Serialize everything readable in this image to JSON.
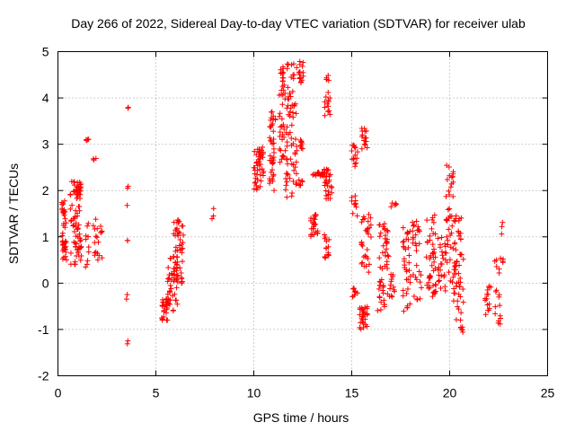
{
  "chart_data": {
    "type": "scatter",
    "title": "Day 266 of 2022, Sidereal Day-to-day VTEC variation (SDTVAR) for receiver ulab",
    "xlabel": "GPS time / hours",
    "ylabel": "SDTVAR / TECUs",
    "xlim": [
      0,
      25
    ],
    "ylim": [
      -2,
      5
    ],
    "xticks": [
      "0",
      "5",
      "10",
      "15",
      "20",
      "25"
    ],
    "yticks": [
      "-2",
      "-1",
      "0",
      "1",
      "2",
      "3",
      "4",
      "5"
    ],
    "grid": true,
    "marker": "+",
    "color": "#ff0000",
    "clusters": [
      {
        "x0": 0.2,
        "x1": 0.5,
        "y0": 0.5,
        "y1": 1.8,
        "n": 40
      },
      {
        "x0": 0.6,
        "x1": 1.2,
        "y0": 0.4,
        "y1": 2.2,
        "n": 60
      },
      {
        "x0": 0.8,
        "x1": 1.2,
        "y0": 1.9,
        "y1": 2.2,
        "n": 25
      },
      {
        "x0": 1.4,
        "x1": 1.6,
        "y0": 3.05,
        "y1": 3.12,
        "n": 4
      },
      {
        "x0": 1.4,
        "x1": 1.6,
        "y0": 0.3,
        "y1": 1.3,
        "n": 10
      },
      {
        "x0": 1.8,
        "x1": 2.1,
        "y0": 0.5,
        "y1": 1.4,
        "n": 14
      },
      {
        "x0": 1.8,
        "x1": 1.95,
        "y0": 2.5,
        "y1": 2.7,
        "n": 3
      },
      {
        "x0": 2.15,
        "x1": 2.25,
        "y0": 0.4,
        "y1": 1.75,
        "n": 5
      },
      {
        "x0": 3.5,
        "x1": 3.6,
        "y0": 3.75,
        "y1": 3.8,
        "n": 2
      },
      {
        "x0": 3.5,
        "x1": 3.6,
        "y0": 2.0,
        "y1": 2.25,
        "n": 2
      },
      {
        "x0": 3.5,
        "x1": 3.6,
        "y0": 1.65,
        "y1": 1.7,
        "n": 1
      },
      {
        "x0": 3.5,
        "x1": 3.6,
        "y0": 0.85,
        "y1": 0.95,
        "n": 2
      },
      {
        "x0": 3.5,
        "x1": 3.6,
        "y0": -0.35,
        "y1": -0.2,
        "n": 2
      },
      {
        "x0": 3.5,
        "x1": 3.6,
        "y0": -1.4,
        "y1": -1.15,
        "n": 2
      },
      {
        "x0": 5.3,
        "x1": 5.6,
        "y0": -0.8,
        "y1": -0.3,
        "n": 25
      },
      {
        "x0": 5.6,
        "x1": 6.1,
        "y0": -0.6,
        "y1": 0.6,
        "n": 40
      },
      {
        "x0": 5.9,
        "x1": 6.4,
        "y0": 0.0,
        "y1": 1.4,
        "n": 50
      },
      {
        "x0": 7.85,
        "x1": 7.95,
        "y0": 1.35,
        "y1": 1.8,
        "n": 3
      },
      {
        "x0": 10.0,
        "x1": 10.5,
        "y0": 2.0,
        "y1": 2.95,
        "n": 45
      },
      {
        "x0": 10.8,
        "x1": 11.1,
        "y0": 2.0,
        "y1": 3.7,
        "n": 40
      },
      {
        "x0": 11.3,
        "x1": 11.6,
        "y0": 2.6,
        "y1": 4.7,
        "n": 40
      },
      {
        "x0": 11.6,
        "x1": 12.2,
        "y0": 1.8,
        "y1": 4.8,
        "n": 70
      },
      {
        "x0": 12.3,
        "x1": 12.5,
        "y0": 2.9,
        "y1": 3.1,
        "n": 10
      },
      {
        "x0": 12.3,
        "x1": 12.5,
        "y0": 2.1,
        "y1": 2.3,
        "n": 6
      },
      {
        "x0": 12.3,
        "x1": 12.6,
        "y0": 4.3,
        "y1": 4.8,
        "n": 15
      },
      {
        "x0": 12.9,
        "x1": 13.3,
        "y0": 1.0,
        "y1": 1.5,
        "n": 25
      },
      {
        "x0": 13.0,
        "x1": 13.6,
        "y0": 2.3,
        "y1": 2.4,
        "n": 20
      },
      {
        "x0": 13.6,
        "x1": 14.0,
        "y0": 1.8,
        "y1": 2.5,
        "n": 30
      },
      {
        "x0": 13.6,
        "x1": 13.9,
        "y0": 3.6,
        "y1": 4.5,
        "n": 18
      },
      {
        "x0": 13.6,
        "x1": 13.9,
        "y0": 0.5,
        "y1": 1.05,
        "n": 14
      },
      {
        "x0": 15.0,
        "x1": 15.3,
        "y0": 2.5,
        "y1": 3.0,
        "n": 15
      },
      {
        "x0": 15.0,
        "x1": 15.3,
        "y0": 1.4,
        "y1": 1.9,
        "n": 10
      },
      {
        "x0": 15.0,
        "x1": 15.3,
        "y0": -0.3,
        "y1": -0.1,
        "n": 10
      },
      {
        "x0": 15.4,
        "x1": 15.8,
        "y0": -1.0,
        "y1": -0.5,
        "n": 30
      },
      {
        "x0": 15.5,
        "x1": 15.8,
        "y0": 2.9,
        "y1": 3.4,
        "n": 15
      },
      {
        "x0": 15.5,
        "x1": 16.0,
        "y0": 0.2,
        "y1": 1.5,
        "n": 30
      },
      {
        "x0": 16.3,
        "x1": 16.7,
        "y0": -0.6,
        "y1": 0.1,
        "n": 20
      },
      {
        "x0": 16.4,
        "x1": 16.9,
        "y0": 0.3,
        "y1": 1.3,
        "n": 30
      },
      {
        "x0": 16.8,
        "x1": 17.2,
        "y0": -0.3,
        "y1": 0.2,
        "n": 14
      },
      {
        "x0": 16.9,
        "x1": 17.3,
        "y0": 1.6,
        "y1": 1.8,
        "n": 5
      },
      {
        "x0": 17.6,
        "x1": 18.0,
        "y0": -0.7,
        "y1": 1.2,
        "n": 35
      },
      {
        "x0": 18.1,
        "x1": 18.6,
        "y0": -0.4,
        "y1": 1.4,
        "n": 30
      },
      {
        "x0": 18.8,
        "x1": 19.3,
        "y0": -0.3,
        "y1": 1.6,
        "n": 45
      },
      {
        "x0": 19.4,
        "x1": 19.8,
        "y0": -0.2,
        "y1": 1.0,
        "n": 25
      },
      {
        "x0": 19.8,
        "x1": 20.2,
        "y0": 0.0,
        "y1": 2.6,
        "n": 40
      },
      {
        "x0": 20.2,
        "x1": 20.7,
        "y0": -1.1,
        "y1": 1.5,
        "n": 60
      },
      {
        "x0": 21.8,
        "x1": 22.1,
        "y0": -0.7,
        "y1": 0.0,
        "n": 15
      },
      {
        "x0": 22.3,
        "x1": 22.6,
        "y0": -0.9,
        "y1": 0.7,
        "n": 18
      },
      {
        "x0": 22.6,
        "x1": 22.8,
        "y0": 0.1,
        "y1": 1.4,
        "n": 6
      }
    ]
  }
}
